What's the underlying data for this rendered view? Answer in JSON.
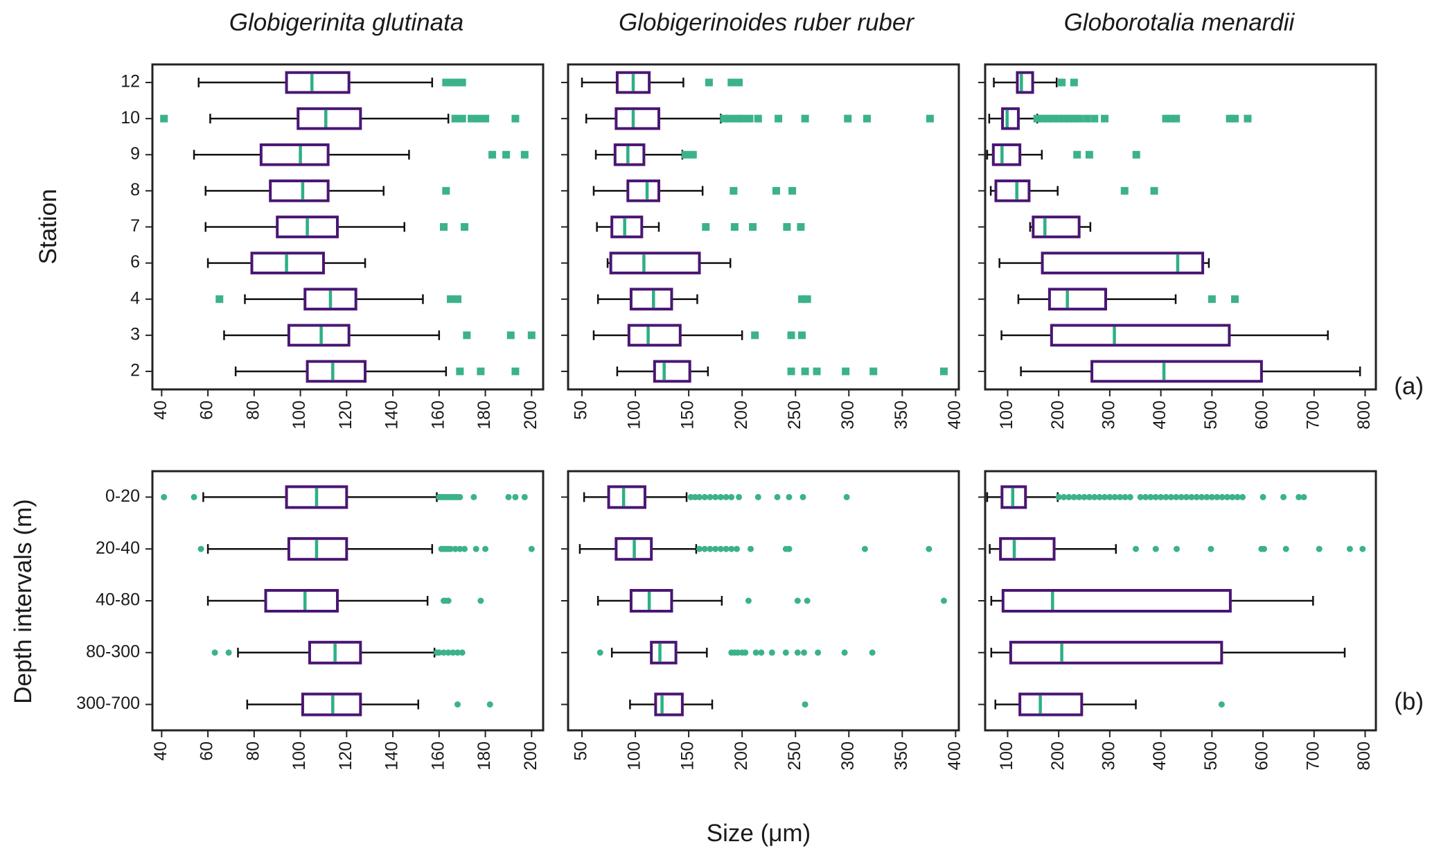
{
  "figure": {
    "xlabel": "Size (μm)",
    "row_tags": [
      "(a)",
      "(b)"
    ]
  },
  "colors": {
    "box": "#4a1673",
    "median": "#2eaf86",
    "flier": "#3bb28c",
    "whisker": "#111111",
    "frame": "#222222"
  },
  "chart_data": [
    {
      "type": "box",
      "panel": "a1",
      "title": "Globigerinita glutinata",
      "ylabel": "Station",
      "xlim": [
        36,
        205
      ],
      "xticks": [
        40,
        60,
        80,
        100,
        120,
        140,
        160,
        180,
        200
      ],
      "flier_shape": "square",
      "categories": [
        "12",
        "10",
        "9",
        "8",
        "7",
        "6",
        "4",
        "3",
        "2"
      ],
      "boxes": [
        {
          "whislo": 56,
          "q1": 94,
          "med": 105,
          "q3": 121,
          "whishi": 157,
          "fliers": [
            163,
            165,
            167,
            169,
            170
          ]
        },
        {
          "whislo": 61,
          "q1": 99,
          "med": 111,
          "q3": 126,
          "whishi": 164,
          "fliers": [
            41,
            167,
            170,
            174,
            177,
            180,
            193
          ]
        },
        {
          "whislo": 54,
          "q1": 83,
          "med": 100,
          "q3": 112,
          "whishi": 147,
          "fliers": [
            183,
            189,
            197
          ]
        },
        {
          "whislo": 59,
          "q1": 87,
          "med": 101,
          "q3": 112,
          "whishi": 136,
          "fliers": [
            163
          ]
        },
        {
          "whislo": 59,
          "q1": 90,
          "med": 103,
          "q3": 116,
          "whishi": 145,
          "fliers": [
            162,
            171
          ]
        },
        {
          "whislo": 60,
          "q1": 79,
          "med": 94,
          "q3": 110,
          "whishi": 128,
          "fliers": []
        },
        {
          "whislo": 76,
          "q1": 102,
          "med": 113,
          "q3": 124,
          "whishi": 153,
          "fliers": [
            65,
            165,
            168
          ]
        },
        {
          "whislo": 67,
          "q1": 95,
          "med": 109,
          "q3": 121,
          "whishi": 160,
          "fliers": [
            172,
            191,
            200
          ]
        },
        {
          "whislo": 72,
          "q1": 103,
          "med": 114,
          "q3": 128,
          "whishi": 163,
          "fliers": [
            169,
            178,
            193
          ]
        }
      ]
    },
    {
      "type": "box",
      "panel": "a2",
      "title": "Globigerinoides ruber ruber",
      "ylabel": "",
      "xlim": [
        37,
        403
      ],
      "xticks": [
        50,
        100,
        150,
        200,
        250,
        300,
        350,
        400
      ],
      "flier_shape": "square",
      "categories": [
        "12",
        "10",
        "9",
        "8",
        "7",
        "6",
        "4",
        "3",
        "2"
      ],
      "boxes": [
        {
          "whislo": 50,
          "q1": 83,
          "med": 98,
          "q3": 113,
          "whishi": 145,
          "fliers": [
            169,
            190,
            197
          ]
        },
        {
          "whislo": 54,
          "q1": 82,
          "med": 98,
          "q3": 122,
          "whishi": 180,
          "fliers": [
            183,
            188,
            195,
            200,
            207,
            215,
            234,
            259,
            299,
            317,
            376
          ]
        },
        {
          "whislo": 63,
          "q1": 81,
          "med": 93,
          "q3": 108,
          "whishi": 144,
          "fliers": [
            147,
            154
          ]
        },
        {
          "whislo": 61,
          "q1": 93,
          "med": 111,
          "q3": 122,
          "whishi": 163,
          "fliers": [
            192,
            232,
            247
          ]
        },
        {
          "whislo": 64,
          "q1": 78,
          "med": 90,
          "q3": 106,
          "whishi": 122,
          "fliers": [
            166,
            193,
            210,
            242,
            255
          ]
        },
        {
          "whislo": 74,
          "q1": 77,
          "med": 108,
          "q3": 160,
          "whishi": 189,
          "fliers": []
        },
        {
          "whislo": 65,
          "q1": 96,
          "med": 117,
          "q3": 134,
          "whishi": 158,
          "fliers": [
            256,
            261
          ]
        },
        {
          "whislo": 61,
          "q1": 94,
          "med": 112,
          "q3": 142,
          "whishi": 200,
          "fliers": [
            212,
            246,
            256
          ]
        },
        {
          "whislo": 83,
          "q1": 118,
          "med": 127,
          "q3": 151,
          "whishi": 168,
          "fliers": [
            246,
            259,
            270,
            297,
            323,
            389
          ]
        }
      ]
    },
    {
      "type": "box",
      "panel": "a3",
      "title": "Globorotalia menardii",
      "ylabel": "",
      "xlim": [
        56,
        821
      ],
      "xticks": [
        100,
        200,
        300,
        400,
        500,
        600,
        700,
        800
      ],
      "flier_shape": "square",
      "categories": [
        "12",
        "10",
        "9",
        "8",
        "7",
        "6",
        "4",
        "3",
        "2"
      ],
      "boxes": [
        {
          "whislo": 73,
          "q1": 119,
          "med": 127,
          "q3": 149,
          "whishi": 196,
          "fliers": [
            206,
            230
          ]
        },
        {
          "whislo": 64,
          "q1": 90,
          "med": 99,
          "q3": 121,
          "whishi": 158,
          "fliers": [
            158,
            170,
            180,
            190,
            200,
            210,
            220,
            230,
            240,
            255,
            270,
            290,
            410,
            420,
            430,
            535,
            545,
            570
          ]
        },
        {
          "whislo": 60,
          "q1": 72,
          "med": 89,
          "q3": 124,
          "whishi": 167,
          "fliers": [
            236,
            260,
            352
          ]
        },
        {
          "whislo": 67,
          "q1": 77,
          "med": 118,
          "q3": 142,
          "whishi": 198,
          "fliers": [
            329,
            387
          ]
        },
        {
          "whislo": 144,
          "q1": 150,
          "med": 173,
          "q3": 240,
          "whishi": 262,
          "fliers": []
        },
        {
          "whislo": 84,
          "q1": 168,
          "med": 433,
          "q3": 482,
          "whishi": 494,
          "fliers": []
        },
        {
          "whislo": 121,
          "q1": 182,
          "med": 217,
          "q3": 292,
          "whishi": 429,
          "fliers": [
            500,
            545
          ]
        },
        {
          "whislo": 88,
          "q1": 186,
          "med": 309,
          "q3": 534,
          "whishi": 727,
          "fliers": []
        },
        {
          "whislo": 126,
          "q1": 265,
          "med": 406,
          "q3": 597,
          "whishi": 790,
          "fliers": []
        }
      ]
    },
    {
      "type": "box",
      "panel": "b1",
      "title": "",
      "ylabel": "Depth intervals (m)",
      "xlim": [
        36,
        205
      ],
      "xticks": [
        40,
        60,
        80,
        100,
        120,
        140,
        160,
        180,
        200
      ],
      "flier_shape": "circle",
      "categories": [
        "0-20",
        "20-40",
        "40-80",
        "80-300",
        "300-700"
      ],
      "boxes": [
        {
          "whislo": 58,
          "q1": 94,
          "med": 107,
          "q3": 120,
          "whishi": 159,
          "fliers": [
            41,
            54,
            160,
            161,
            162,
            163,
            164,
            165,
            166,
            167,
            168,
            169,
            175,
            190,
            193,
            197
          ]
        },
        {
          "whislo": 60,
          "q1": 95,
          "med": 107,
          "q3": 120,
          "whishi": 157,
          "fliers": [
            57,
            161,
            162,
            163,
            164,
            165,
            167,
            169,
            171,
            176,
            180,
            200
          ]
        },
        {
          "whislo": 60,
          "q1": 85,
          "med": 102,
          "q3": 116,
          "whishi": 155,
          "fliers": [
            162,
            163,
            164,
            178
          ]
        },
        {
          "whislo": 73,
          "q1": 104,
          "med": 115,
          "q3": 126,
          "whishi": 158,
          "fliers": [
            63,
            69,
            159,
            160,
            162,
            164,
            166,
            168,
            170
          ]
        },
        {
          "whislo": 77,
          "q1": 101,
          "med": 114,
          "q3": 126,
          "whishi": 151,
          "fliers": [
            168,
            182
          ]
        }
      ]
    },
    {
      "type": "box",
      "panel": "b2",
      "title": "",
      "ylabel": "",
      "xlim": [
        37,
        403
      ],
      "xticks": [
        50,
        100,
        150,
        200,
        250,
        300,
        350,
        400
      ],
      "flier_shape": "circle",
      "categories": [
        "0-20",
        "20-40",
        "40-80",
        "80-300",
        "300-700"
      ],
      "boxes": [
        {
          "whislo": 52,
          "q1": 75,
          "med": 89,
          "q3": 109,
          "whishi": 148,
          "fliers": [
            152,
            156,
            160,
            165,
            170,
            175,
            180,
            185,
            190,
            197,
            215,
            233,
            244,
            257,
            298
          ]
        },
        {
          "whislo": 48,
          "q1": 82,
          "med": 99,
          "q3": 115,
          "whishi": 157,
          "fliers": [
            160,
            165,
            170,
            175,
            180,
            185,
            190,
            195,
            208,
            241,
            244,
            315,
            375
          ]
        },
        {
          "whislo": 65,
          "q1": 96,
          "med": 113,
          "q3": 134,
          "whishi": 181,
          "fliers": [
            206,
            252,
            261,
            389
          ]
        },
        {
          "whislo": 78,
          "q1": 115,
          "med": 123,
          "q3": 138,
          "whishi": 167,
          "fliers": [
            67,
            190,
            193,
            196,
            200,
            203,
            213,
            218,
            228,
            241,
            252,
            258,
            271,
            296,
            322
          ]
        },
        {
          "whislo": 95,
          "q1": 119,
          "med": 125,
          "q3": 144,
          "whishi": 172,
          "fliers": [
            259
          ]
        }
      ]
    },
    {
      "type": "box",
      "panel": "b3",
      "title": "",
      "ylabel": "",
      "xlim": [
        56,
        821
      ],
      "xticks": [
        100,
        200,
        300,
        400,
        500,
        600,
        700,
        800
      ],
      "flier_shape": "circle",
      "categories": [
        "0-20",
        "20-40",
        "40-80",
        "80-300",
        "300-700"
      ],
      "boxes": [
        {
          "whislo": 60,
          "q1": 89,
          "med": 110,
          "q3": 135,
          "whishi": 198,
          "fliers": [
            200,
            210,
            220,
            230,
            240,
            250,
            260,
            270,
            280,
            290,
            300,
            310,
            320,
            330,
            340,
            360,
            370,
            380,
            390,
            400,
            410,
            420,
            430,
            440,
            450,
            460,
            470,
            480,
            490,
            500,
            510,
            520,
            530,
            540,
            550,
            560,
            600,
            640,
            670,
            680
          ]
        },
        {
          "whislo": 65,
          "q1": 86,
          "med": 113,
          "q3": 191,
          "whishi": 312,
          "fliers": [
            351,
            390,
            431,
            498,
            597,
            602,
            645,
            710,
            770,
            795
          ]
        },
        {
          "whislo": 68,
          "q1": 91,
          "med": 188,
          "q3": 536,
          "whishi": 698,
          "fliers": []
        },
        {
          "whislo": 68,
          "q1": 106,
          "med": 206,
          "q3": 519,
          "whishi": 760,
          "fliers": []
        },
        {
          "whislo": 76,
          "q1": 124,
          "med": 164,
          "q3": 245,
          "whishi": 351,
          "fliers": [
            519
          ]
        }
      ]
    }
  ]
}
